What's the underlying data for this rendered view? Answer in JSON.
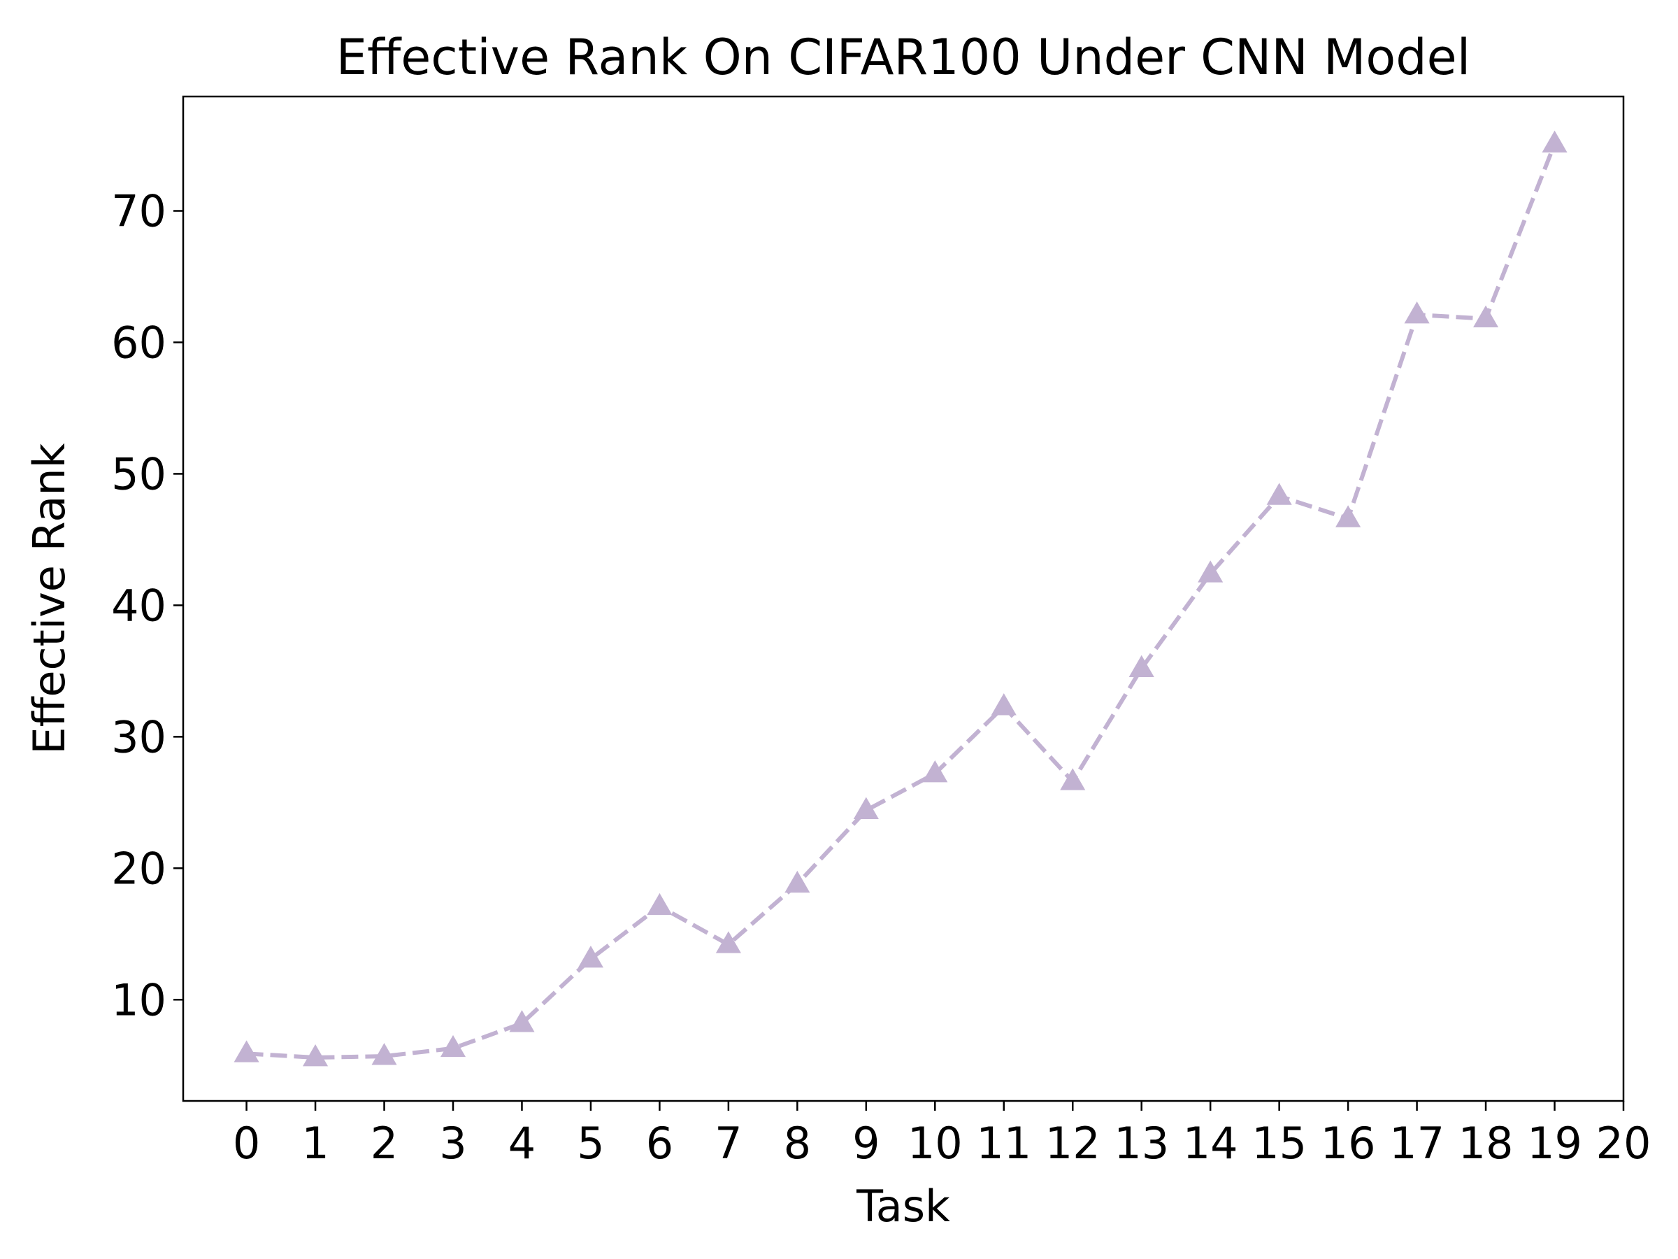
{
  "chart_data": {
    "type": "line",
    "title": "Effective Rank On CIFAR100 Under CNN Model",
    "xlabel": "Task",
    "ylabel": "Effective Rank",
    "xlim": [
      -0.92,
      20
    ],
    "ylim": [
      2.3,
      78.7
    ],
    "xticks": [
      0,
      1,
      2,
      3,
      4,
      5,
      6,
      7,
      8,
      9,
      10,
      11,
      12,
      13,
      14,
      15,
      16,
      17,
      18,
      19,
      20
    ],
    "yticks": [
      10,
      20,
      30,
      40,
      50,
      60,
      70
    ],
    "grid": false,
    "series": [
      {
        "color": "#c2b2d2",
        "line_style": "dashed",
        "marker": "triangle-up",
        "x": [
          0,
          1,
          2,
          3,
          4,
          5,
          6,
          7,
          8,
          9,
          10,
          11,
          12,
          13,
          14,
          15,
          16,
          17,
          18,
          19
        ],
        "values": [
          5.9,
          5.6,
          5.7,
          6.3,
          8.2,
          13.1,
          17.1,
          14.2,
          18.8,
          24.4,
          27.2,
          32.3,
          26.6,
          35.2,
          42.4,
          48.3,
          46.6,
          62.1,
          61.8,
          75.1
        ]
      }
    ]
  }
}
